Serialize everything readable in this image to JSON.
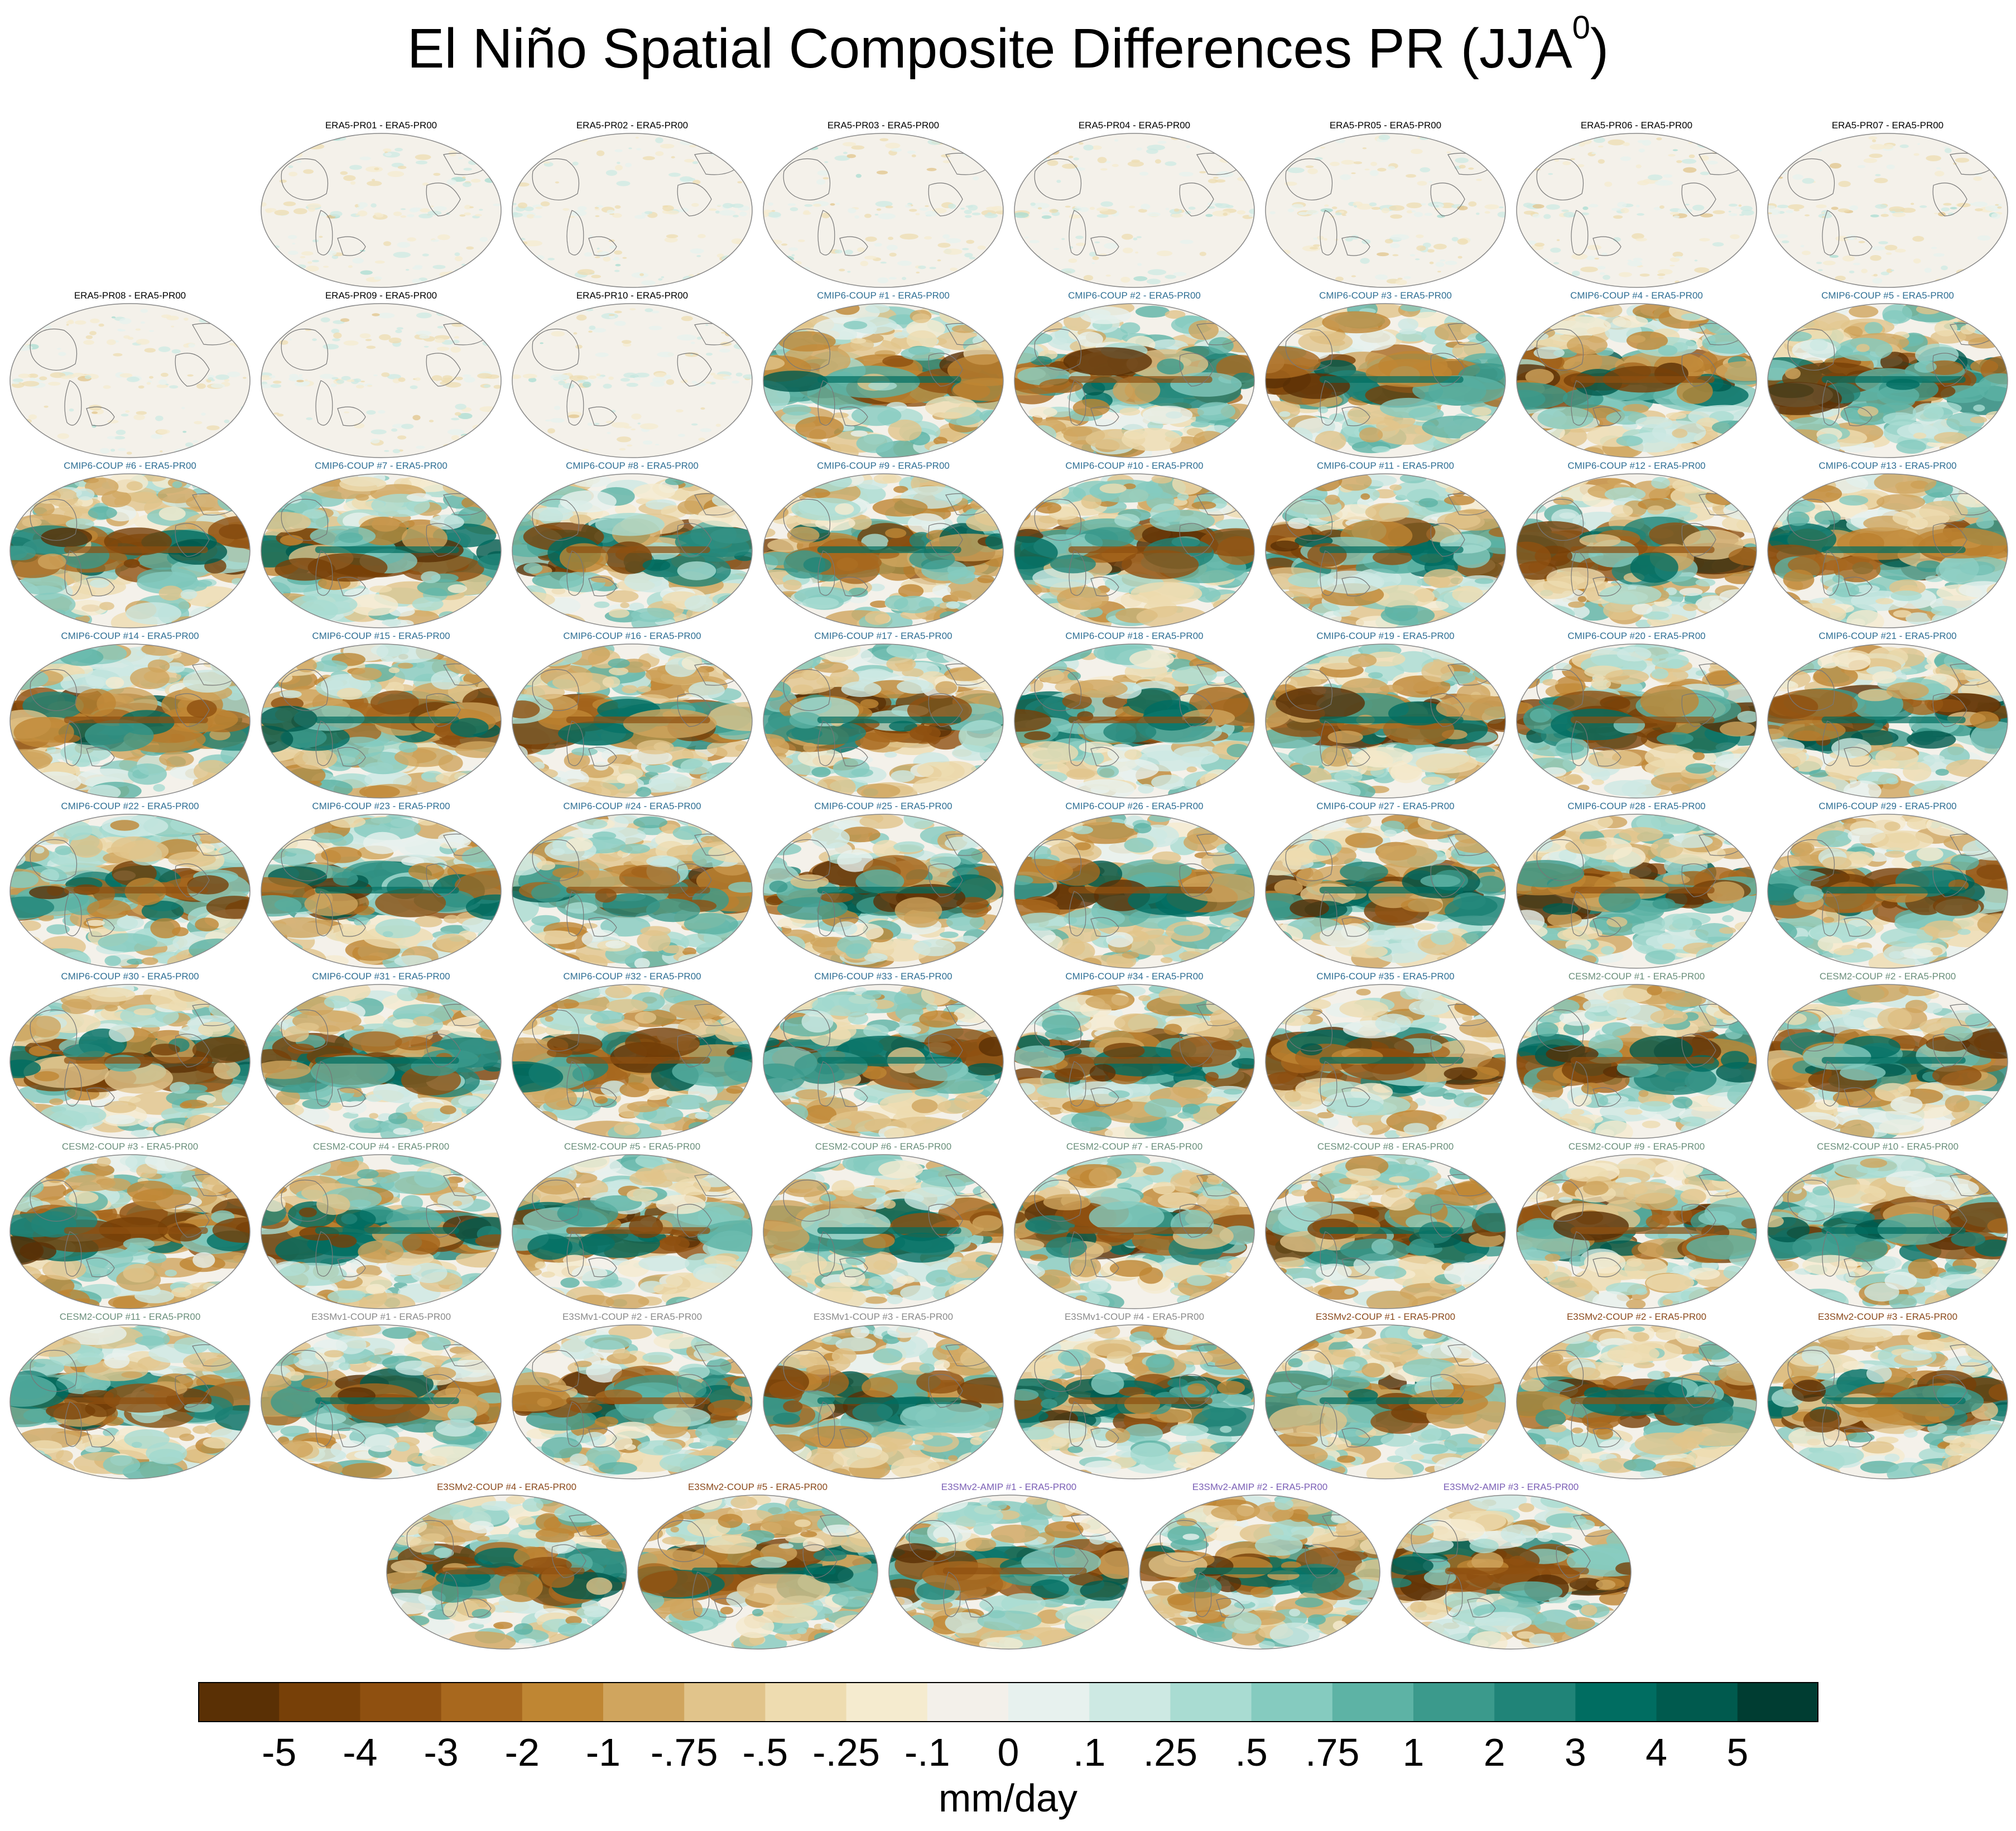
{
  "chart_data": {
    "type": "heatmap",
    "title": "El Niño Spatial Composite Differences PR (JJA",
    "title_superscript": "0",
    "title_suffix": ")",
    "colorbar": {
      "units": "mm/day",
      "tick_labels": [
        "-5",
        "-4",
        "-3",
        "-2",
        "-1",
        "-.75",
        "-.5",
        "-.25",
        "-.1",
        "0",
        ".1",
        ".25",
        ".5",
        ".75",
        "1",
        "2",
        "3",
        "4",
        "5"
      ],
      "colors": [
        "#5a3005",
        "#774008",
        "#8f5010",
        "#a8681e",
        "#bf8633",
        "#d0a55e",
        "#e1c48b",
        "#eedcb0",
        "#f5ebcf",
        "#f3f0ea",
        "#e7f1ee",
        "#cde9e3",
        "#a9dcd2",
        "#85cbbf",
        "#5db3a5",
        "#3b9a8c",
        "#208478",
        "#006d61",
        "#005a4e",
        "#003d32"
      ]
    },
    "group_colors": {
      "ERA5": "#000000",
      "CMIP6": "#2f6f94",
      "CESM2": "#6a8f7b",
      "E3SMv1": "#8a8a8a",
      "E3SMv2-COUP": "#8b4a1c",
      "E3SMv2-AMIP": "#7b5fb5"
    },
    "panels": [
      {
        "label": "ERA5-PR01 - ERA5-PR00",
        "group": "ERA5"
      },
      {
        "label": "ERA5-PR02 - ERA5-PR00",
        "group": "ERA5"
      },
      {
        "label": "ERA5-PR03 - ERA5-PR00",
        "group": "ERA5"
      },
      {
        "label": "ERA5-PR04 - ERA5-PR00",
        "group": "ERA5"
      },
      {
        "label": "ERA5-PR05 - ERA5-PR00",
        "group": "ERA5"
      },
      {
        "label": "ERA5-PR06 - ERA5-PR00",
        "group": "ERA5"
      },
      {
        "label": "ERA5-PR07 - ERA5-PR00",
        "group": "ERA5"
      },
      {
        "label": "ERA5-PR08 - ERA5-PR00",
        "group": "ERA5"
      },
      {
        "label": "ERA5-PR09 - ERA5-PR00",
        "group": "ERA5"
      },
      {
        "label": "ERA5-PR10 - ERA5-PR00",
        "group": "ERA5"
      },
      {
        "label": "CMIP6-COUP  #1 - ERA5-PR00",
        "group": "CMIP6"
      },
      {
        "label": "CMIP6-COUP  #2 - ERA5-PR00",
        "group": "CMIP6"
      },
      {
        "label": "CMIP6-COUP  #3 - ERA5-PR00",
        "group": "CMIP6"
      },
      {
        "label": "CMIP6-COUP  #4 - ERA5-PR00",
        "group": "CMIP6"
      },
      {
        "label": "CMIP6-COUP  #5 - ERA5-PR00",
        "group": "CMIP6"
      },
      {
        "label": "CMIP6-COUP  #6 - ERA5-PR00",
        "group": "CMIP6"
      },
      {
        "label": "CMIP6-COUP  #7 - ERA5-PR00",
        "group": "CMIP6"
      },
      {
        "label": "CMIP6-COUP  #8 - ERA5-PR00",
        "group": "CMIP6"
      },
      {
        "label": "CMIP6-COUP  #9 - ERA5-PR00",
        "group": "CMIP6"
      },
      {
        "label": "CMIP6-COUP  #10 - ERA5-PR00",
        "group": "CMIP6"
      },
      {
        "label": "CMIP6-COUP  #11 - ERA5-PR00",
        "group": "CMIP6"
      },
      {
        "label": "CMIP6-COUP  #12 - ERA5-PR00",
        "group": "CMIP6"
      },
      {
        "label": "CMIP6-COUP  #13 - ERA5-PR00",
        "group": "CMIP6"
      },
      {
        "label": "CMIP6-COUP  #14 - ERA5-PR00",
        "group": "CMIP6"
      },
      {
        "label": "CMIP6-COUP  #15 - ERA5-PR00",
        "group": "CMIP6"
      },
      {
        "label": "CMIP6-COUP  #16 - ERA5-PR00",
        "group": "CMIP6"
      },
      {
        "label": "CMIP6-COUP  #17 - ERA5-PR00",
        "group": "CMIP6"
      },
      {
        "label": "CMIP6-COUP  #18 - ERA5-PR00",
        "group": "CMIP6"
      },
      {
        "label": "CMIP6-COUP  #19 - ERA5-PR00",
        "group": "CMIP6"
      },
      {
        "label": "CMIP6-COUP  #20 - ERA5-PR00",
        "group": "CMIP6"
      },
      {
        "label": "CMIP6-COUP  #21 - ERA5-PR00",
        "group": "CMIP6"
      },
      {
        "label": "CMIP6-COUP  #22 - ERA5-PR00",
        "group": "CMIP6"
      },
      {
        "label": "CMIP6-COUP  #23 - ERA5-PR00",
        "group": "CMIP6"
      },
      {
        "label": "CMIP6-COUP  #24 - ERA5-PR00",
        "group": "CMIP6"
      },
      {
        "label": "CMIP6-COUP  #25 - ERA5-PR00",
        "group": "CMIP6"
      },
      {
        "label": "CMIP6-COUP  #26 - ERA5-PR00",
        "group": "CMIP6"
      },
      {
        "label": "CMIP6-COUP  #27 - ERA5-PR00",
        "group": "CMIP6"
      },
      {
        "label": "CMIP6-COUP  #28 - ERA5-PR00",
        "group": "CMIP6"
      },
      {
        "label": "CMIP6-COUP  #29 - ERA5-PR00",
        "group": "CMIP6"
      },
      {
        "label": "CMIP6-COUP  #30 - ERA5-PR00",
        "group": "CMIP6"
      },
      {
        "label": "CMIP6-COUP  #31 - ERA5-PR00",
        "group": "CMIP6"
      },
      {
        "label": "CMIP6-COUP  #32 - ERA5-PR00",
        "group": "CMIP6"
      },
      {
        "label": "CMIP6-COUP  #33 - ERA5-PR00",
        "group": "CMIP6"
      },
      {
        "label": "CMIP6-COUP  #34 - ERA5-PR00",
        "group": "CMIP6"
      },
      {
        "label": "CMIP6-COUP  #35 - ERA5-PR00",
        "group": "CMIP6"
      },
      {
        "label": "CESM2-COUP  #1 - ERA5-PR00",
        "group": "CESM2"
      },
      {
        "label": "CESM2-COUP  #2 - ERA5-PR00",
        "group": "CESM2"
      },
      {
        "label": "CESM2-COUP  #3 - ERA5-PR00",
        "group": "CESM2"
      },
      {
        "label": "CESM2-COUP  #4 - ERA5-PR00",
        "group": "CESM2"
      },
      {
        "label": "CESM2-COUP  #5 - ERA5-PR00",
        "group": "CESM2"
      },
      {
        "label": "CESM2-COUP  #6 - ERA5-PR00",
        "group": "CESM2"
      },
      {
        "label": "CESM2-COUP  #7 - ERA5-PR00",
        "group": "CESM2"
      },
      {
        "label": "CESM2-COUP  #8 - ERA5-PR00",
        "group": "CESM2"
      },
      {
        "label": "CESM2-COUP  #9 - ERA5-PR00",
        "group": "CESM2"
      },
      {
        "label": "CESM2-COUP  #10 - ERA5-PR00",
        "group": "CESM2"
      },
      {
        "label": "CESM2-COUP  #11 - ERA5-PR00",
        "group": "CESM2"
      },
      {
        "label": "E3SMv1-COUP #1 - ERA5-PR00",
        "group": "E3SMv1"
      },
      {
        "label": "E3SMv1-COUP #2 - ERA5-PR00",
        "group": "E3SMv1"
      },
      {
        "label": "E3SMv1-COUP #3 - ERA5-PR00",
        "group": "E3SMv1"
      },
      {
        "label": "E3SMv1-COUP #4 - ERA5-PR00",
        "group": "E3SMv1"
      },
      {
        "label": "E3SMv2-COUP #1 - ERA5-PR00",
        "group": "E3SMv2-COUP"
      },
      {
        "label": "E3SMv2-COUP #2 - ERA5-PR00",
        "group": "E3SMv2-COUP"
      },
      {
        "label": "E3SMv2-COUP #3 - ERA5-PR00",
        "group": "E3SMv2-COUP"
      },
      {
        "label": "E3SMv2-COUP #4 - ERA5-PR00",
        "group": "E3SMv2-COUP"
      },
      {
        "label": "E3SMv2-COUP #5 - ERA5-PR00",
        "group": "E3SMv2-COUP"
      },
      {
        "label": "E3SMv2-AMIP #1 - ERA5-PR00",
        "group": "E3SMv2-AMIP"
      },
      {
        "label": "E3SMv2-AMIP #2 - ERA5-PR00",
        "group": "E3SMv2-AMIP"
      },
      {
        "label": "E3SMv2-AMIP #3 - ERA5-PR00",
        "group": "E3SMv2-AMIP"
      }
    ]
  }
}
